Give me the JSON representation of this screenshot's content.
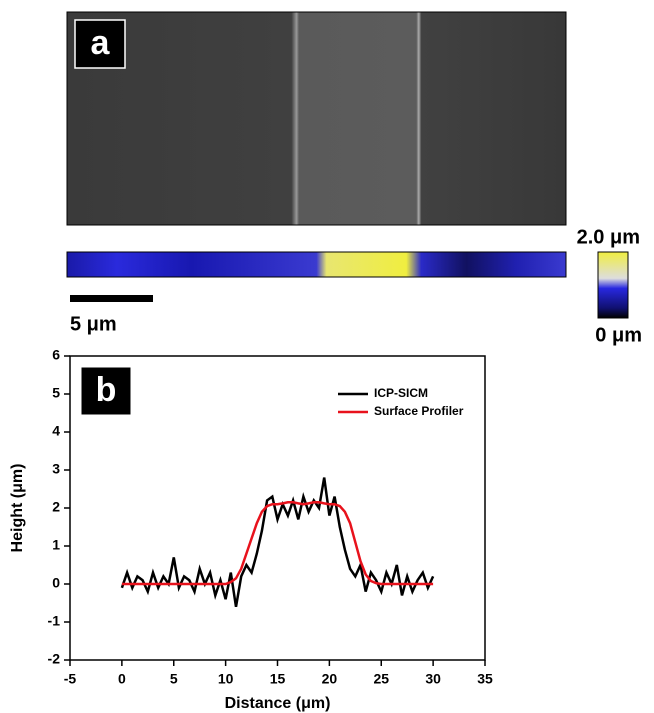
{
  "panel_a": {
    "label": "a"
  },
  "scale_bar": {
    "label": "5 μm"
  },
  "colorbar": {
    "max_label": "2.0 μm",
    "min_label": "0 μm"
  },
  "chart_data": {
    "type": "line",
    "panel_label": "b",
    "x_label": "Distance (μm)",
    "y_label": "Height (μm)",
    "xlim": [
      -5,
      35
    ],
    "xticks": [
      -5,
      0,
      5,
      10,
      15,
      20,
      25,
      30,
      35
    ],
    "ylim": [
      -2,
      6
    ],
    "yticks": [
      -2,
      -1,
      0,
      1,
      2,
      3,
      4,
      5,
      6
    ],
    "legend": "top-right",
    "x": [
      0,
      0.5,
      1,
      1.5,
      2,
      2.5,
      3,
      3.5,
      4,
      4.5,
      5,
      5.5,
      6,
      6.5,
      7,
      7.5,
      8,
      8.5,
      9,
      9.5,
      10,
      10.5,
      11,
      11.5,
      12,
      12.5,
      13,
      13.5,
      14,
      14.5,
      15,
      15.5,
      16,
      16.5,
      17,
      17.5,
      18,
      18.5,
      19,
      19.5,
      20,
      20.5,
      21,
      21.5,
      22,
      22.5,
      23,
      23.5,
      24,
      24.5,
      25,
      25.5,
      26,
      26.5,
      27,
      27.5,
      28,
      28.5,
      29,
      29.5,
      30
    ],
    "series": [
      {
        "name": "ICP-SICM",
        "color": "#000000",
        "values": [
          -0.1,
          0.3,
          -0.1,
          0.2,
          0.1,
          -0.2,
          0.3,
          -0.1,
          0.2,
          0,
          0.7,
          -0.1,
          0.2,
          0.1,
          -0.2,
          0.4,
          0,
          0.3,
          -0.3,
          0.1,
          -0.4,
          0.3,
          -0.6,
          0.2,
          0.5,
          0.3,
          0.8,
          1.4,
          2.2,
          2.3,
          1.7,
          2.1,
          1.8,
          2.2,
          1.7,
          2.3,
          1.9,
          2.2,
          2.0,
          2.8,
          1.8,
          2.3,
          1.5,
          0.9,
          0.4,
          0.2,
          0.5,
          -0.2,
          0.3,
          0.1,
          -0.2,
          0.3,
          0,
          0.5,
          -0.3,
          0.2,
          -0.2,
          0.1,
          0.3,
          -0.1,
          0.2
        ]
      },
      {
        "name": "Surface Profiler",
        "color": "#e8121c",
        "values": [
          0,
          0,
          0,
          0,
          0,
          0,
          0,
          0,
          0,
          0,
          0,
          0,
          0,
          0,
          0,
          0,
          0,
          0,
          0,
          0,
          0,
          0.05,
          0.15,
          0.4,
          0.8,
          1.2,
          1.6,
          1.9,
          2.05,
          2.1,
          2.1,
          2.12,
          2.15,
          2.15,
          2.12,
          2.1,
          2.12,
          2.15,
          2.15,
          2.12,
          2.1,
          2.1,
          2.05,
          1.9,
          1.6,
          1.1,
          0.6,
          0.25,
          0.08,
          0.02,
          0,
          0,
          0,
          0,
          0,
          0,
          0,
          0,
          0,
          0,
          0
        ]
      }
    ]
  }
}
